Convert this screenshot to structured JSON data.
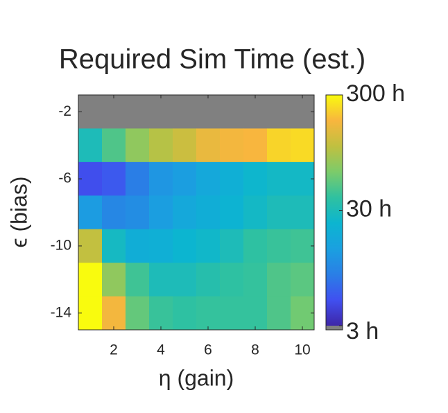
{
  "chart_data": {
    "type": "heatmap",
    "title": "Required Sim Time (est.)",
    "x_label": "η (gain)",
    "y_label": "ϵ (bias)",
    "x": [
      1,
      2,
      3,
      4,
      5,
      6,
      7,
      8,
      9,
      10
    ],
    "y": [
      -2,
      -4,
      -6,
      -8,
      -10,
      -12,
      -14
    ],
    "values": [
      [
        null,
        null,
        null,
        null,
        null,
        null,
        null,
        null,
        null,
        null
      ],
      [
        30,
        48,
        75,
        100,
        119,
        157,
        172,
        180,
        225,
        235
      ],
      [
        4.9,
        5.5,
        8.3,
        12,
        13.6,
        17,
        20,
        24,
        26,
        26
      ],
      [
        13,
        9.5,
        10.4,
        13.6,
        17,
        19,
        22,
        26,
        30,
        30
      ],
      [
        110,
        27,
        19,
        20,
        23,
        25,
        30,
        38,
        41,
        43
      ],
      [
        300,
        75,
        43,
        30,
        30,
        34,
        38,
        40,
        48,
        52
      ],
      [
        300,
        172,
        55,
        41,
        38,
        40,
        40,
        40,
        48,
        60
      ]
    ],
    "xlim": [
      0.5,
      10.5
    ],
    "xticks": [
      2,
      4,
      6,
      8,
      10
    ],
    "ylim": [
      -15,
      -1
    ],
    "yticks": [
      -2,
      -6,
      -10,
      -14
    ],
    "clim": [
      3,
      300
    ],
    "color_scale": "log",
    "cticks": [
      {
        "value": 3,
        "label": "3 h"
      },
      {
        "value": 30,
        "label": "30 h"
      },
      {
        "value": 300,
        "label": "300 h"
      }
    ],
    "null_color": "#808080",
    "colormap": [
      "#3e26a8",
      "#4050f0",
      "#2a7fe6",
      "#1aa0e0",
      "#0cb5d0",
      "#2fc1a0",
      "#7ccb6a",
      "#c0c040",
      "#f8b63e",
      "#f9fb0e"
    ]
  }
}
